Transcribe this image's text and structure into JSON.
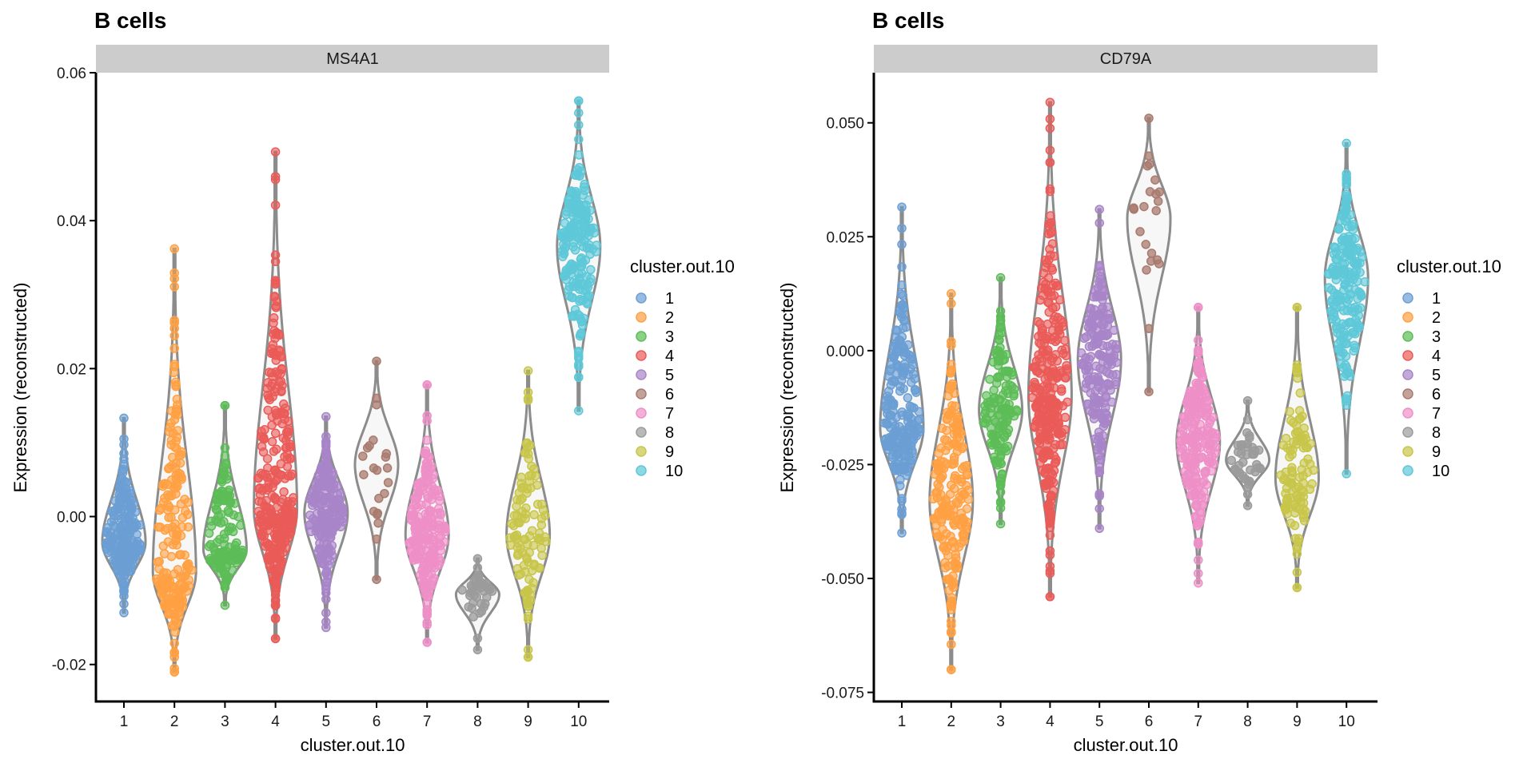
{
  "figure": {
    "background": "#ffffff",
    "violin_outline_color": "#8c8c8c",
    "strip_fill": "#cccccc"
  },
  "legend": {
    "title": "cluster.out.10",
    "items": [
      {
        "label": "1",
        "color": "#6b9fd4"
      },
      {
        "label": "2",
        "color": "#ffa043"
      },
      {
        "label": "3",
        "color": "#5cbd57"
      },
      {
        "label": "4",
        "color": "#ea5b58"
      },
      {
        "label": "5",
        "color": "#a884c8"
      },
      {
        "label": "6",
        "color": "#a97b6f"
      },
      {
        "label": "7",
        "color": "#ee8fc8"
      },
      {
        "label": "8",
        "color": "#9b9b9b"
      },
      {
        "label": "9",
        "color": "#c8c64a"
      },
      {
        "label": "10",
        "color": "#5ec8d8"
      }
    ]
  },
  "chart_data": [
    {
      "type": "violin",
      "title": "B cells",
      "facet_label": "MS4A1",
      "xlabel": "cluster.out.10",
      "ylabel": "Expression (reconstructed)",
      "ylim": [
        -0.025,
        0.06
      ],
      "yticks": [
        -0.02,
        0.0,
        0.02,
        0.04,
        0.06
      ],
      "ytick_labels": [
        "-0.02",
        "0.00",
        "0.02",
        "0.04",
        "0.06"
      ],
      "categories": [
        "1",
        "2",
        "3",
        "4",
        "5",
        "6",
        "7",
        "8",
        "9",
        "10"
      ],
      "series": [
        {
          "category": "1",
          "min": -0.013,
          "max": 0.0133,
          "center": -0.0035,
          "n": 220
        },
        {
          "category": "2",
          "min": -0.021,
          "max": 0.0362,
          "center": -0.0075,
          "n": 200
        },
        {
          "category": "3",
          "min": -0.012,
          "max": 0.015,
          "center": -0.0045,
          "n": 140
        },
        {
          "category": "4",
          "min": -0.0165,
          "max": 0.0493,
          "center": 0.001,
          "n": 320
        },
        {
          "category": "5",
          "min": -0.015,
          "max": 0.0135,
          "center": 0.0005,
          "n": 200
        },
        {
          "category": "6",
          "min": -0.0085,
          "max": 0.021,
          "center": 0.007,
          "n": 22
        },
        {
          "category": "7",
          "min": -0.017,
          "max": 0.0178,
          "center": -0.0025,
          "n": 220
        },
        {
          "category": "8",
          "min": -0.018,
          "max": -0.0057,
          "center": -0.0105,
          "n": 40
        },
        {
          "category": "9",
          "min": -0.019,
          "max": 0.0197,
          "center": -0.0025,
          "n": 110
        },
        {
          "category": "10",
          "min": 0.0143,
          "max": 0.0562,
          "center": 0.0365,
          "n": 200
        }
      ]
    },
    {
      "type": "violin",
      "title": "B cells",
      "facet_label": "CD79A",
      "xlabel": "cluster.out.10",
      "ylabel": "Expression (reconstructed)",
      "ylim": [
        -0.077,
        0.061
      ],
      "yticks": [
        -0.075,
        -0.05,
        -0.025,
        0.0,
        0.025,
        0.05
      ],
      "ytick_labels": [
        "-0.075",
        "-0.050",
        "-0.025",
        "0.000",
        "0.025",
        "0.050"
      ],
      "categories": [
        "1",
        "2",
        "3",
        "4",
        "5",
        "6",
        "7",
        "8",
        "9",
        "10"
      ],
      "series": [
        {
          "category": "1",
          "min": -0.04,
          "max": 0.0315,
          "center": -0.017,
          "n": 220
        },
        {
          "category": "2",
          "min": -0.07,
          "max": 0.0125,
          "center": -0.033,
          "n": 200
        },
        {
          "category": "3",
          "min": -0.038,
          "max": 0.016,
          "center": -0.013,
          "n": 140
        },
        {
          "category": "4",
          "min": -0.054,
          "max": 0.0545,
          "center": -0.01,
          "n": 320
        },
        {
          "category": "5",
          "min": -0.039,
          "max": 0.031,
          "center": -0.002,
          "n": 200
        },
        {
          "category": "6",
          "min": -0.009,
          "max": 0.051,
          "center": 0.029,
          "n": 22
        },
        {
          "category": "7",
          "min": -0.051,
          "max": 0.0095,
          "center": -0.02,
          "n": 220
        },
        {
          "category": "8",
          "min": -0.034,
          "max": -0.011,
          "center": -0.024,
          "n": 40
        },
        {
          "category": "9",
          "min": -0.052,
          "max": 0.0095,
          "center": -0.028,
          "n": 110
        },
        {
          "category": "10",
          "min": -0.027,
          "max": 0.0455,
          "center": 0.016,
          "n": 200
        }
      ]
    }
  ]
}
